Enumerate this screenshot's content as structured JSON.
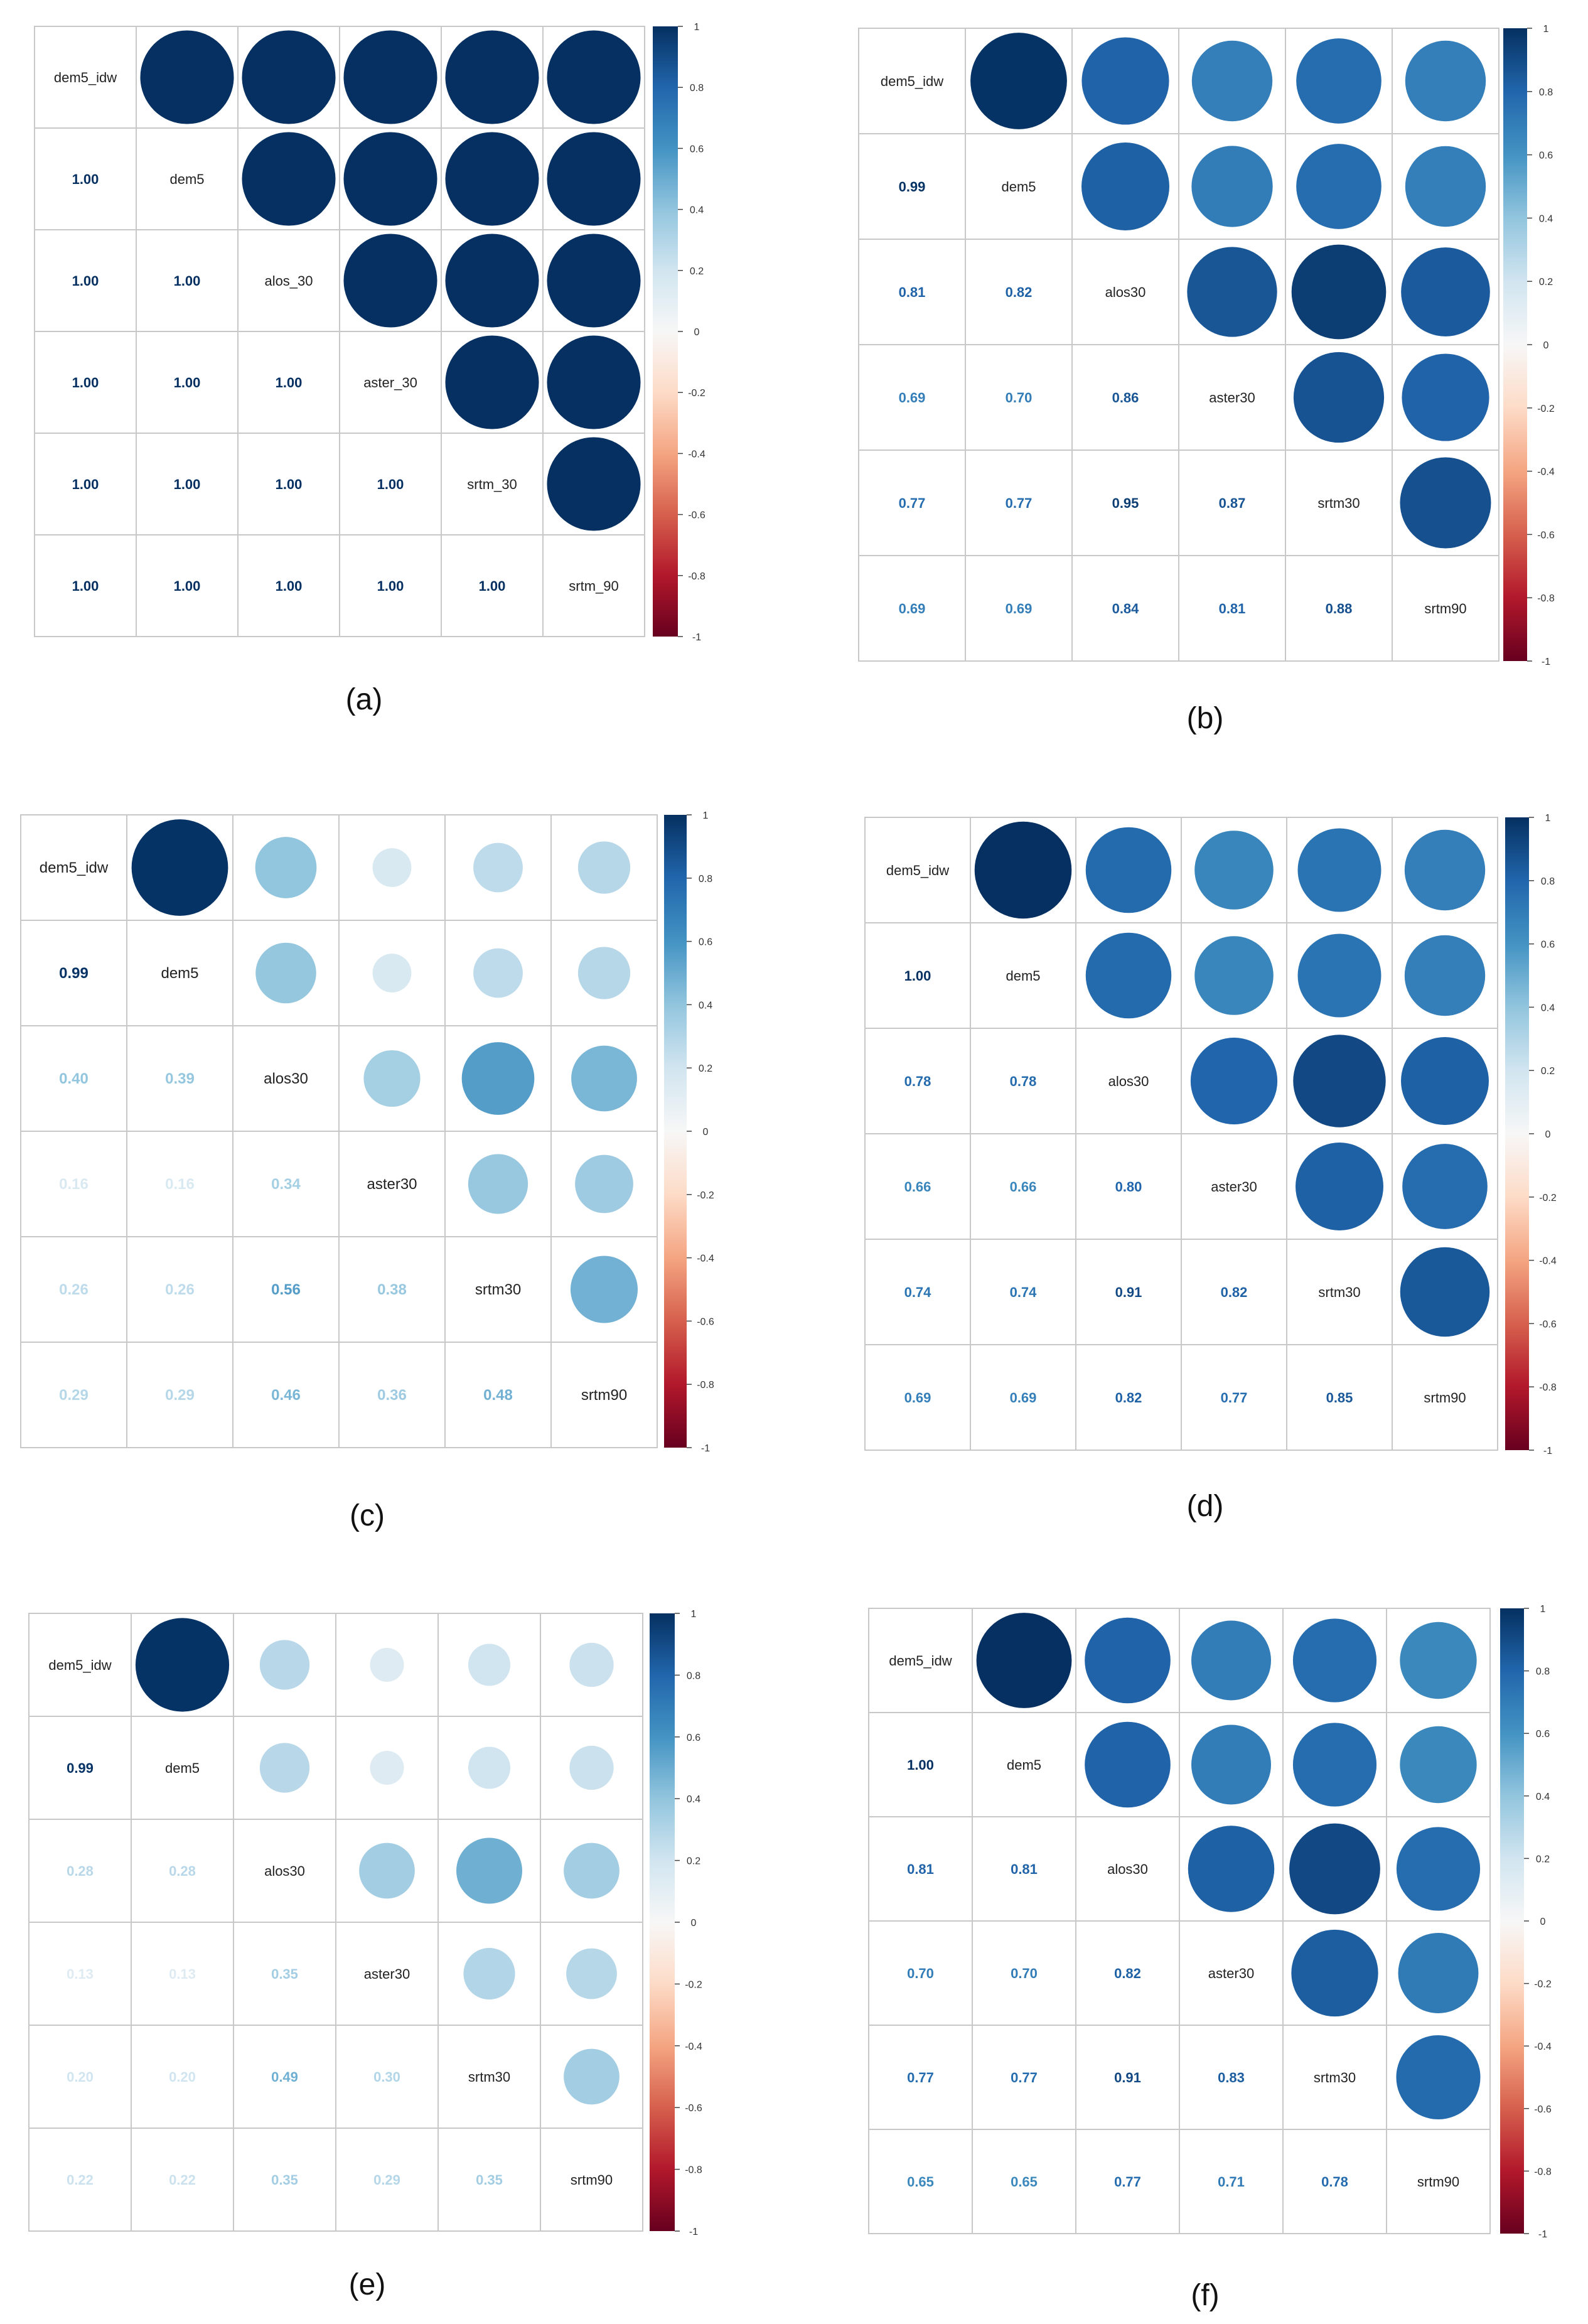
{
  "chart_data": [
    {
      "type": "heatmap",
      "panel_label": "(a)",
      "variables": [
        "dem5_idw",
        "dem5",
        "alos_30",
        "aster_30",
        "srtm_30",
        "srtm_90"
      ],
      "lower_values": [
        [
          1.0
        ],
        [
          1.0,
          1.0
        ],
        [
          1.0,
          1.0,
          1.0
        ],
        [
          1.0,
          1.0,
          1.0,
          1.0
        ],
        [
          1.0,
          1.0,
          1.0,
          1.0,
          1.0
        ]
      ],
      "lower_labels": [
        [
          "1.00"
        ],
        [
          "1.00",
          "1.00"
        ],
        [
          "1.00",
          "1.00",
          "1.00"
        ],
        [
          "1.00",
          "1.00",
          "1.00",
          "1.00"
        ],
        [
          "1.00",
          "1.00",
          "1.00",
          "1.00",
          "1.00"
        ]
      ],
      "colorbar_ticks": [
        "1",
        "0.8",
        "0.6",
        "0.4",
        "0.2",
        "0",
        "-0.2",
        "-0.4",
        "-0.6",
        "-0.8",
        "-1"
      ],
      "colorbar_range": [
        -1,
        1
      ]
    },
    {
      "type": "heatmap",
      "panel_label": "(b)",
      "variables": [
        "dem5_idw",
        "dem5",
        "alos30",
        "aster30",
        "srtm30",
        "srtm90"
      ],
      "lower_values": [
        [
          0.99
        ],
        [
          0.81,
          0.82
        ],
        [
          0.69,
          0.7,
          0.86
        ],
        [
          0.77,
          0.77,
          0.95,
          0.87
        ],
        [
          0.69,
          0.69,
          0.84,
          0.81,
          0.88
        ]
      ],
      "lower_labels": [
        [
          "0.99"
        ],
        [
          "0.81",
          "0.82"
        ],
        [
          "0.69",
          "0.70",
          "0.86"
        ],
        [
          "0.77",
          "0.77",
          "0.95",
          "0.87"
        ],
        [
          "0.69",
          "0.69",
          "0.84",
          "0.81",
          "0.88"
        ]
      ],
      "colorbar_ticks": [
        "1",
        "0.8",
        "0.6",
        "0.4",
        "0.2",
        "0",
        "-0.2",
        "-0.4",
        "-0.6",
        "-0.8",
        "-1"
      ],
      "colorbar_range": [
        -1,
        1
      ]
    },
    {
      "type": "heatmap",
      "panel_label": "(c)",
      "variables": [
        "dem5_idw",
        "dem5",
        "alos30",
        "aster30",
        "srtm30",
        "srtm90"
      ],
      "lower_values": [
        [
          0.99
        ],
        [
          0.4,
          0.39
        ],
        [
          0.16,
          0.16,
          0.34
        ],
        [
          0.26,
          0.26,
          0.56,
          0.38
        ],
        [
          0.29,
          0.29,
          0.46,
          0.36,
          0.48
        ]
      ],
      "lower_labels": [
        [
          "0.99"
        ],
        [
          "0.40",
          "0.39"
        ],
        [
          "0.16",
          "0.16",
          "0.34"
        ],
        [
          "0.26",
          "0.26",
          "0.56",
          "0.38"
        ],
        [
          "0.29",
          "0.29",
          "0.46",
          "0.36",
          "0.48"
        ]
      ],
      "colorbar_ticks": [
        "1",
        "0.8",
        "0.6",
        "0.4",
        "0.2",
        "0",
        "-0.2",
        "-0.4",
        "-0.6",
        "-0.8",
        "-1"
      ],
      "colorbar_range": [
        -1,
        1
      ]
    },
    {
      "type": "heatmap",
      "panel_label": "(d)",
      "variables": [
        "dem5_idw",
        "dem5",
        "alos30",
        "aster30",
        "srtm30",
        "srtm90"
      ],
      "lower_values": [
        [
          1.0
        ],
        [
          0.78,
          0.78
        ],
        [
          0.66,
          0.66,
          0.8
        ],
        [
          0.74,
          0.74,
          0.91,
          0.82
        ],
        [
          0.69,
          0.69,
          0.82,
          0.77,
          0.85
        ]
      ],
      "lower_labels": [
        [
          "1.00"
        ],
        [
          "0.78",
          "0.78"
        ],
        [
          "0.66",
          "0.66",
          "0.80"
        ],
        [
          "0.74",
          "0.74",
          "0.91",
          "0.82"
        ],
        [
          "0.69",
          "0.69",
          "0.82",
          "0.77",
          "0.85"
        ]
      ],
      "colorbar_ticks": [
        "1",
        "0.8",
        "0.6",
        "0.4",
        "0.2",
        "0",
        "-0.2",
        "-0.4",
        "-0.6",
        "-0.8",
        "-1"
      ],
      "colorbar_range": [
        -1,
        1
      ]
    },
    {
      "type": "heatmap",
      "panel_label": "(e)",
      "variables": [
        "dem5_idw",
        "dem5",
        "alos30",
        "aster30",
        "srtm30",
        "srtm90"
      ],
      "lower_values": [
        [
          0.99
        ],
        [
          0.28,
          0.28
        ],
        [
          0.13,
          0.13,
          0.35
        ],
        [
          0.2,
          0.2,
          0.49,
          0.3
        ],
        [
          0.22,
          0.22,
          0.35,
          0.29,
          0.35
        ]
      ],
      "lower_labels": [
        [
          "0.99"
        ],
        [
          "0.28",
          "0.28"
        ],
        [
          "0.13",
          "0.13",
          "0.35"
        ],
        [
          "0.20",
          "0.20",
          "0.49",
          "0.30"
        ],
        [
          "0.22",
          "0.22",
          "0.35",
          "0.29",
          "0.35"
        ]
      ],
      "colorbar_ticks": [
        "1",
        "0.8",
        "0.6",
        "0.4",
        "0.2",
        "0",
        "-0.2",
        "-0.4",
        "-0.6",
        "-0.8",
        "-1"
      ],
      "colorbar_range": [
        -1,
        1
      ]
    },
    {
      "type": "heatmap",
      "panel_label": "(f)",
      "variables": [
        "dem5_idw",
        "dem5",
        "alos30",
        "aster30",
        "srtm30",
        "srtm90"
      ],
      "lower_values": [
        [
          1.0
        ],
        [
          0.81,
          0.81
        ],
        [
          0.7,
          0.7,
          0.82
        ],
        [
          0.77,
          0.77,
          0.91,
          0.83
        ],
        [
          0.65,
          0.65,
          0.77,
          0.71,
          0.78
        ]
      ],
      "lower_labels": [
        [
          "1.00"
        ],
        [
          "0.81",
          "0.81"
        ],
        [
          "0.70",
          "0.70",
          "0.82"
        ],
        [
          "0.77",
          "0.77",
          "0.91",
          "0.83"
        ],
        [
          "0.65",
          "0.65",
          "0.77",
          "0.71",
          "0.78"
        ]
      ],
      "colorbar_ticks": [
        "1",
        "0.8",
        "0.6",
        "0.4",
        "0.2",
        "0",
        "-0.2",
        "-0.4",
        "-0.6",
        "-0.8",
        "-1"
      ],
      "colorbar_range": [
        -1,
        1
      ]
    }
  ]
}
